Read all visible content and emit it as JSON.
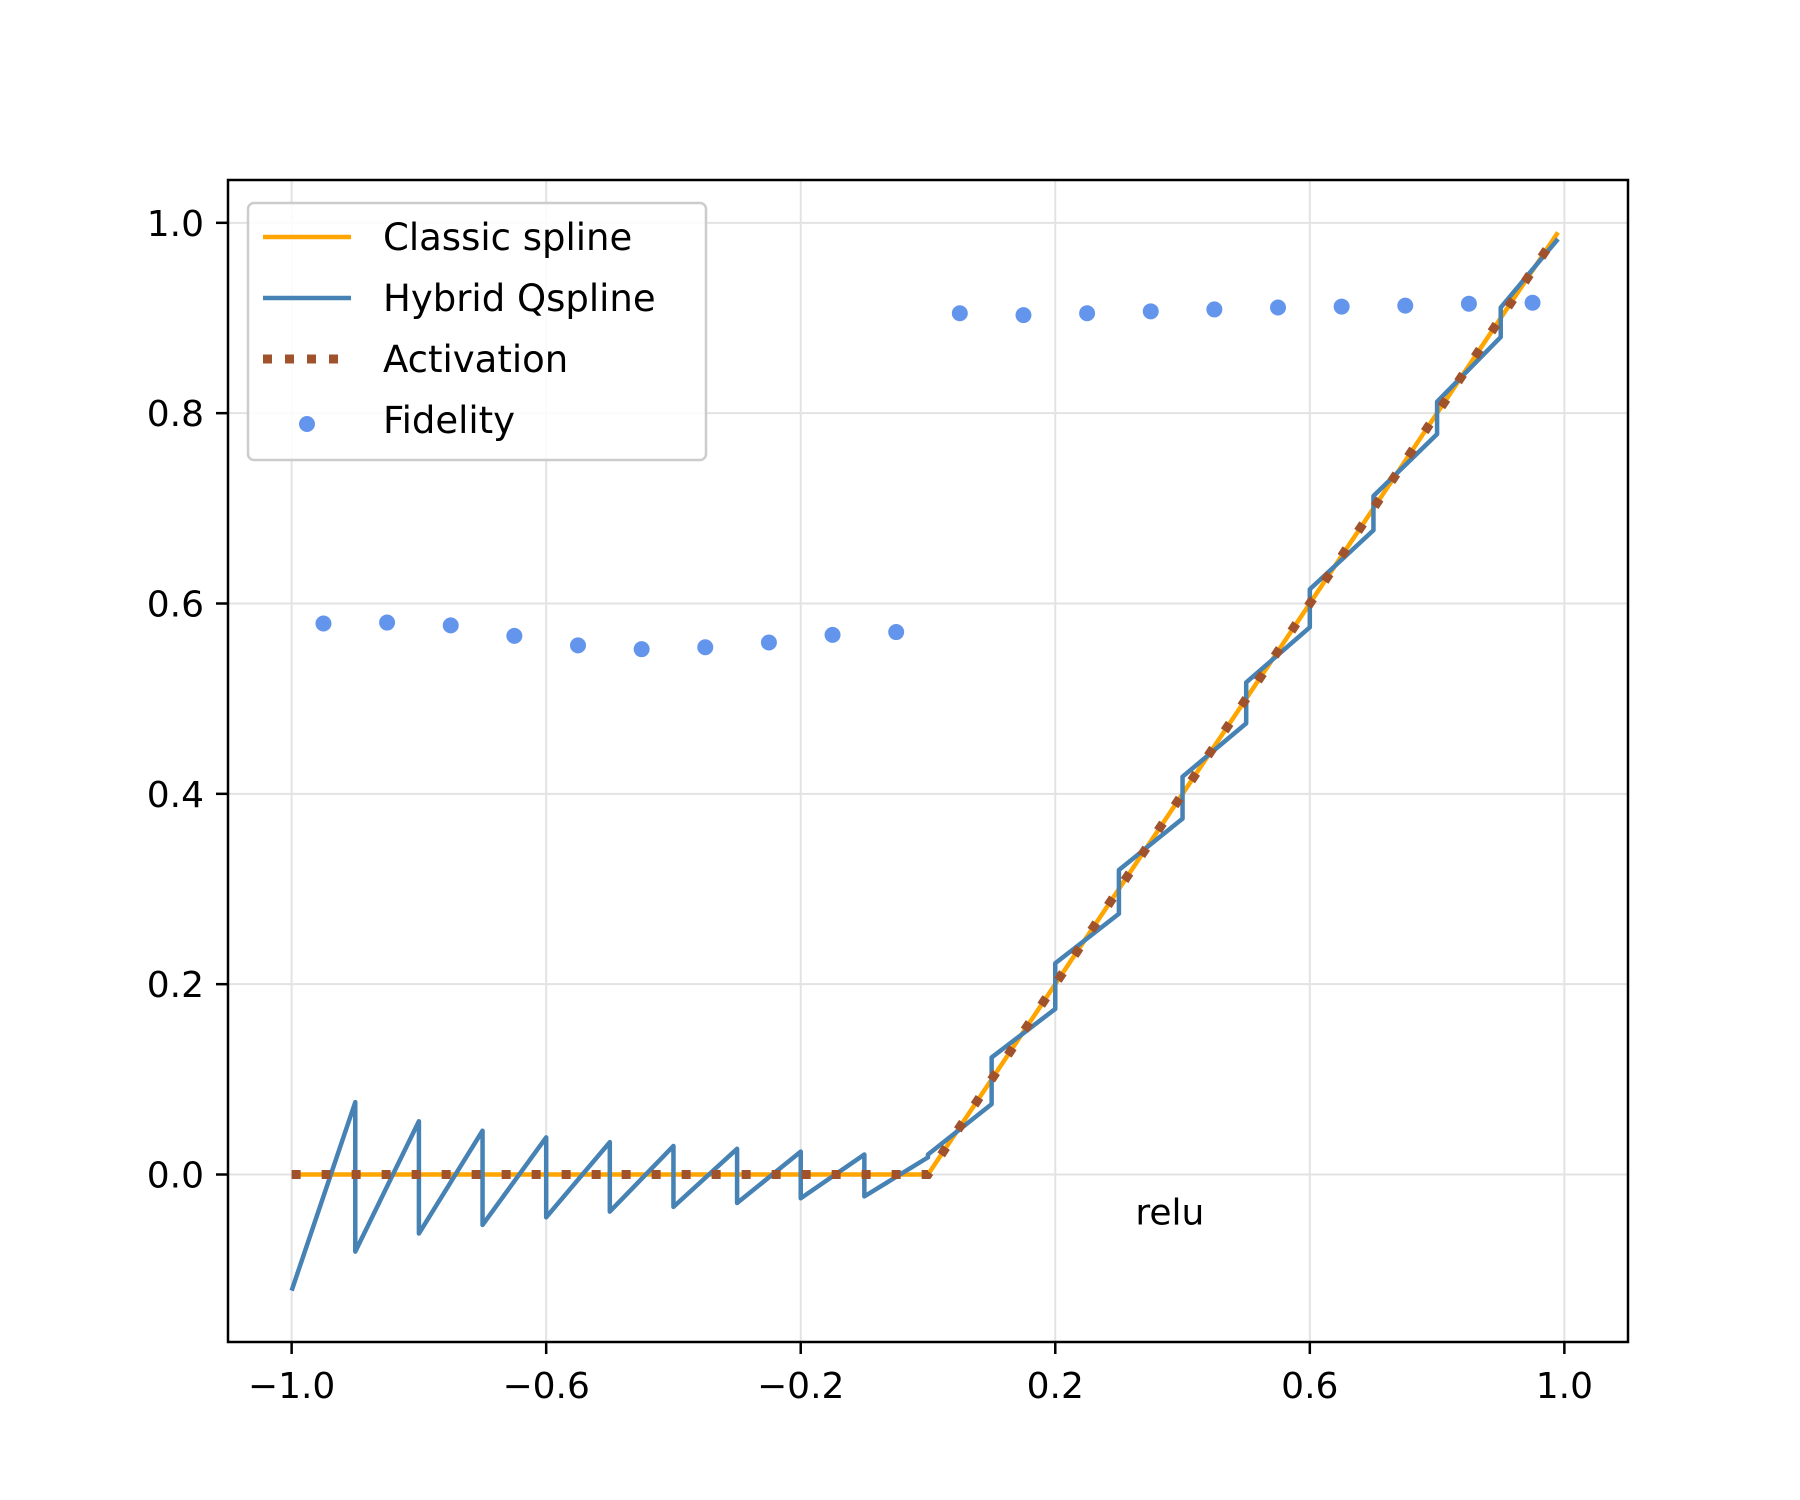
{
  "chart_data": {
    "type": "line",
    "title": "",
    "xlabel": "",
    "ylabel": "",
    "xlim": [
      -1.1,
      1.1
    ],
    "ylim": [
      -0.176,
      1.045
    ],
    "grid": true,
    "legend_position": "top-left",
    "x_ticks": [
      -1.0,
      -0.6,
      -0.2,
      0.2,
      0.6,
      1.0
    ],
    "x_tick_labels": [
      "−1.0",
      "−0.6",
      "−0.2",
      "0.2",
      "0.6",
      "1.0"
    ],
    "y_ticks": [
      0.0,
      0.2,
      0.4,
      0.6,
      0.8,
      1.0
    ],
    "y_tick_labels": [
      "0.0",
      "0.2",
      "0.4",
      "0.6",
      "0.8",
      "1.0"
    ],
    "annotation": {
      "text": "relu",
      "x": 0.38,
      "y": -0.04
    },
    "series": [
      {
        "name": "Classic spline",
        "kind": "line",
        "color": "#ffa500",
        "x": [
          -1.0,
          0.0,
          0.1,
          0.2,
          0.3,
          0.4,
          0.5,
          0.6,
          0.7,
          0.8,
          0.9,
          0.99
        ],
        "y": [
          0.0,
          0.0,
          0.1,
          0.2,
          0.3,
          0.4,
          0.5,
          0.6,
          0.7,
          0.8,
          0.9,
          0.99
        ]
      },
      {
        "name": "Hybrid Qspline",
        "kind": "line",
        "color": "#4682b4",
        "x": [
          -1.0,
          -0.9,
          -0.9,
          -0.8,
          -0.8,
          -0.7,
          -0.7,
          -0.6,
          -0.6,
          -0.5,
          -0.5,
          -0.4,
          -0.4,
          -0.3,
          -0.3,
          -0.2,
          -0.2,
          -0.1,
          -0.1,
          0.0,
          0.0,
          0.1,
          0.1,
          0.2,
          0.2,
          0.3,
          0.3,
          0.4,
          0.4,
          0.5,
          0.5,
          0.6,
          0.6,
          0.7,
          0.7,
          0.8,
          0.8,
          0.9,
          0.9,
          0.99
        ],
        "y": [
          -0.122,
          0.076,
          -0.081,
          0.056,
          -0.062,
          0.046,
          -0.053,
          0.039,
          -0.045,
          0.034,
          -0.039,
          0.03,
          -0.034,
          0.027,
          -0.03,
          0.024,
          -0.025,
          0.021,
          -0.023,
          0.018,
          0.021,
          0.074,
          0.123,
          0.174,
          0.222,
          0.274,
          0.32,
          0.374,
          0.418,
          0.474,
          0.517,
          0.575,
          0.615,
          0.677,
          0.713,
          0.778,
          0.812,
          0.88,
          0.911,
          0.983
        ]
      },
      {
        "name": "Activation",
        "kind": "dotted",
        "color": "#a0522d",
        "x": [
          -1.0,
          0.0,
          0.99
        ],
        "y": [
          0.0,
          0.0,
          0.99
        ]
      },
      {
        "name": "Fidelity",
        "kind": "scatter",
        "color": "#6495ed",
        "x": [
          -0.95,
          -0.85,
          -0.75,
          -0.65,
          -0.55,
          -0.45,
          -0.35,
          -0.25,
          -0.15,
          -0.05,
          0.05,
          0.15,
          0.25,
          0.35,
          0.45,
          0.55,
          0.65,
          0.75,
          0.85,
          0.95
        ],
        "y": [
          0.579,
          0.58,
          0.577,
          0.566,
          0.556,
          0.552,
          0.554,
          0.559,
          0.567,
          0.57,
          0.905,
          0.903,
          0.905,
          0.907,
          0.909,
          0.911,
          0.912,
          0.913,
          0.915,
          0.916
        ]
      }
    ]
  }
}
